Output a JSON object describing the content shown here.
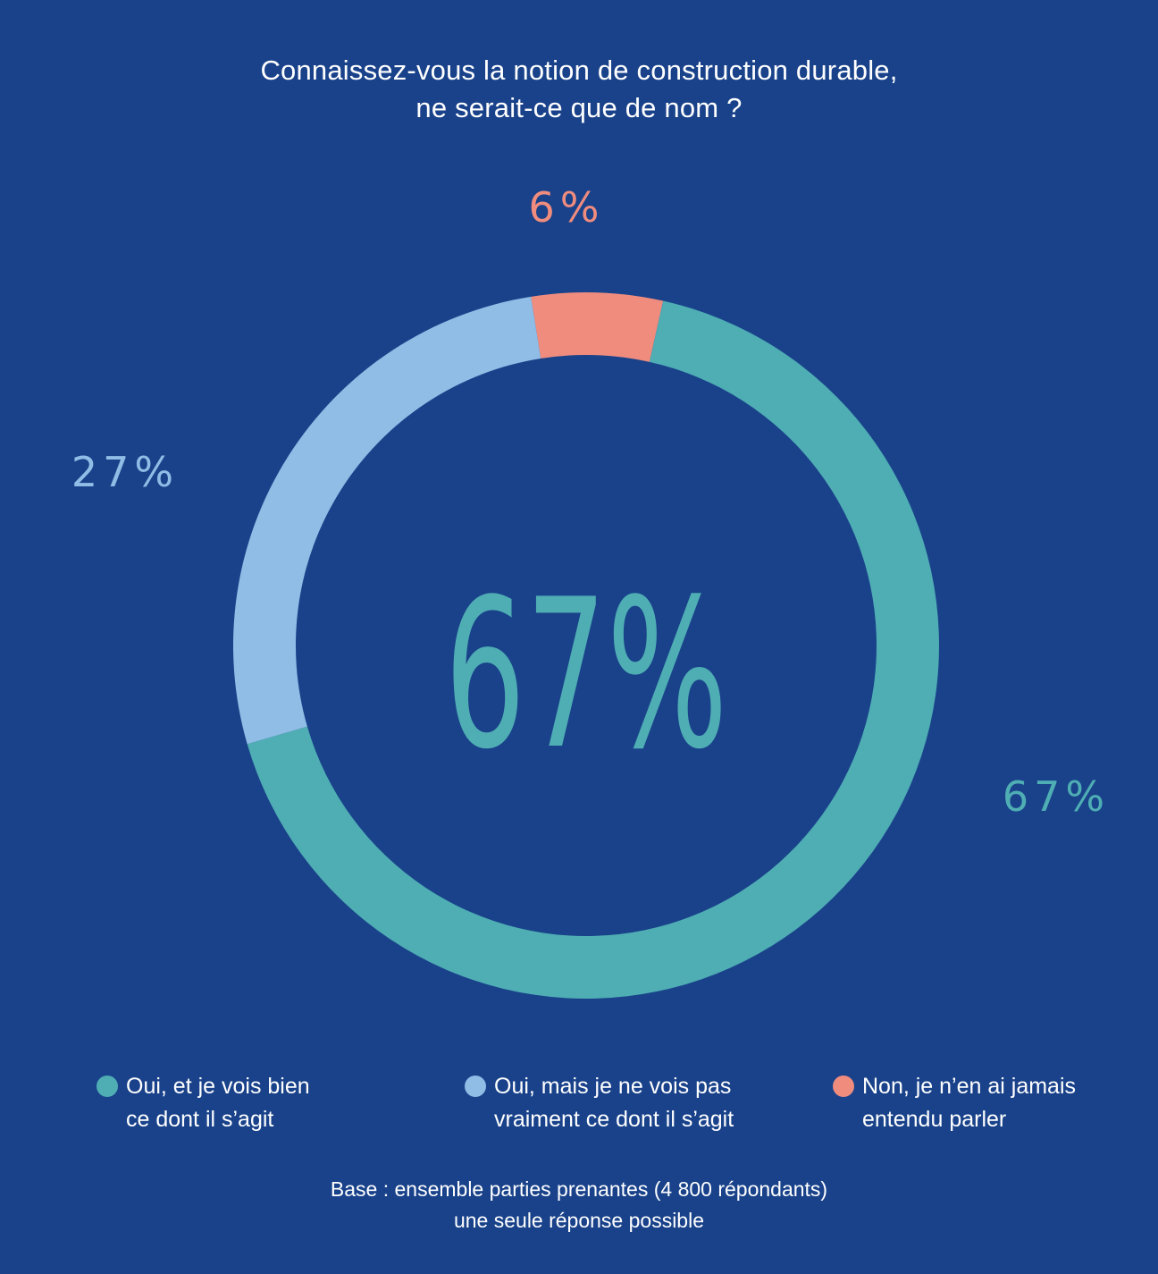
{
  "title": {
    "line1": "Connaissez-vous la notion de construction durable,",
    "line2": "ne serait-ce que de nom ?"
  },
  "chart_data": {
    "type": "pie",
    "variant": "donut",
    "center_label": "67%",
    "start_angle_deg": -9,
    "slices": [
      {
        "key": "oui_bien",
        "label_line1": "Oui, et je vois bien",
        "label_line2": "ce dont il s’agit",
        "value": 67,
        "value_label": "67%",
        "color": "#4fadb4"
      },
      {
        "key": "oui_pas_vraiment",
        "label_line1": "Oui, mais je ne vois pas",
        "label_line2": "vraiment ce dont il s’agit",
        "value": 27,
        "value_label": "27%",
        "color": "#8fbde6"
      },
      {
        "key": "non",
        "label_line1": "Non, je n’en ai jamais",
        "label_line2": "entendu parler",
        "value": 6,
        "value_label": "6%",
        "color": "#f08c7e"
      }
    ],
    "legend_position": "bottom"
  },
  "footnote": {
    "line1": "Base : ensemble parties prenantes (4 800 répondants)",
    "line2": "une seule réponse possible"
  },
  "colors": {
    "background": "#19428a",
    "text": "#ffffff"
  }
}
